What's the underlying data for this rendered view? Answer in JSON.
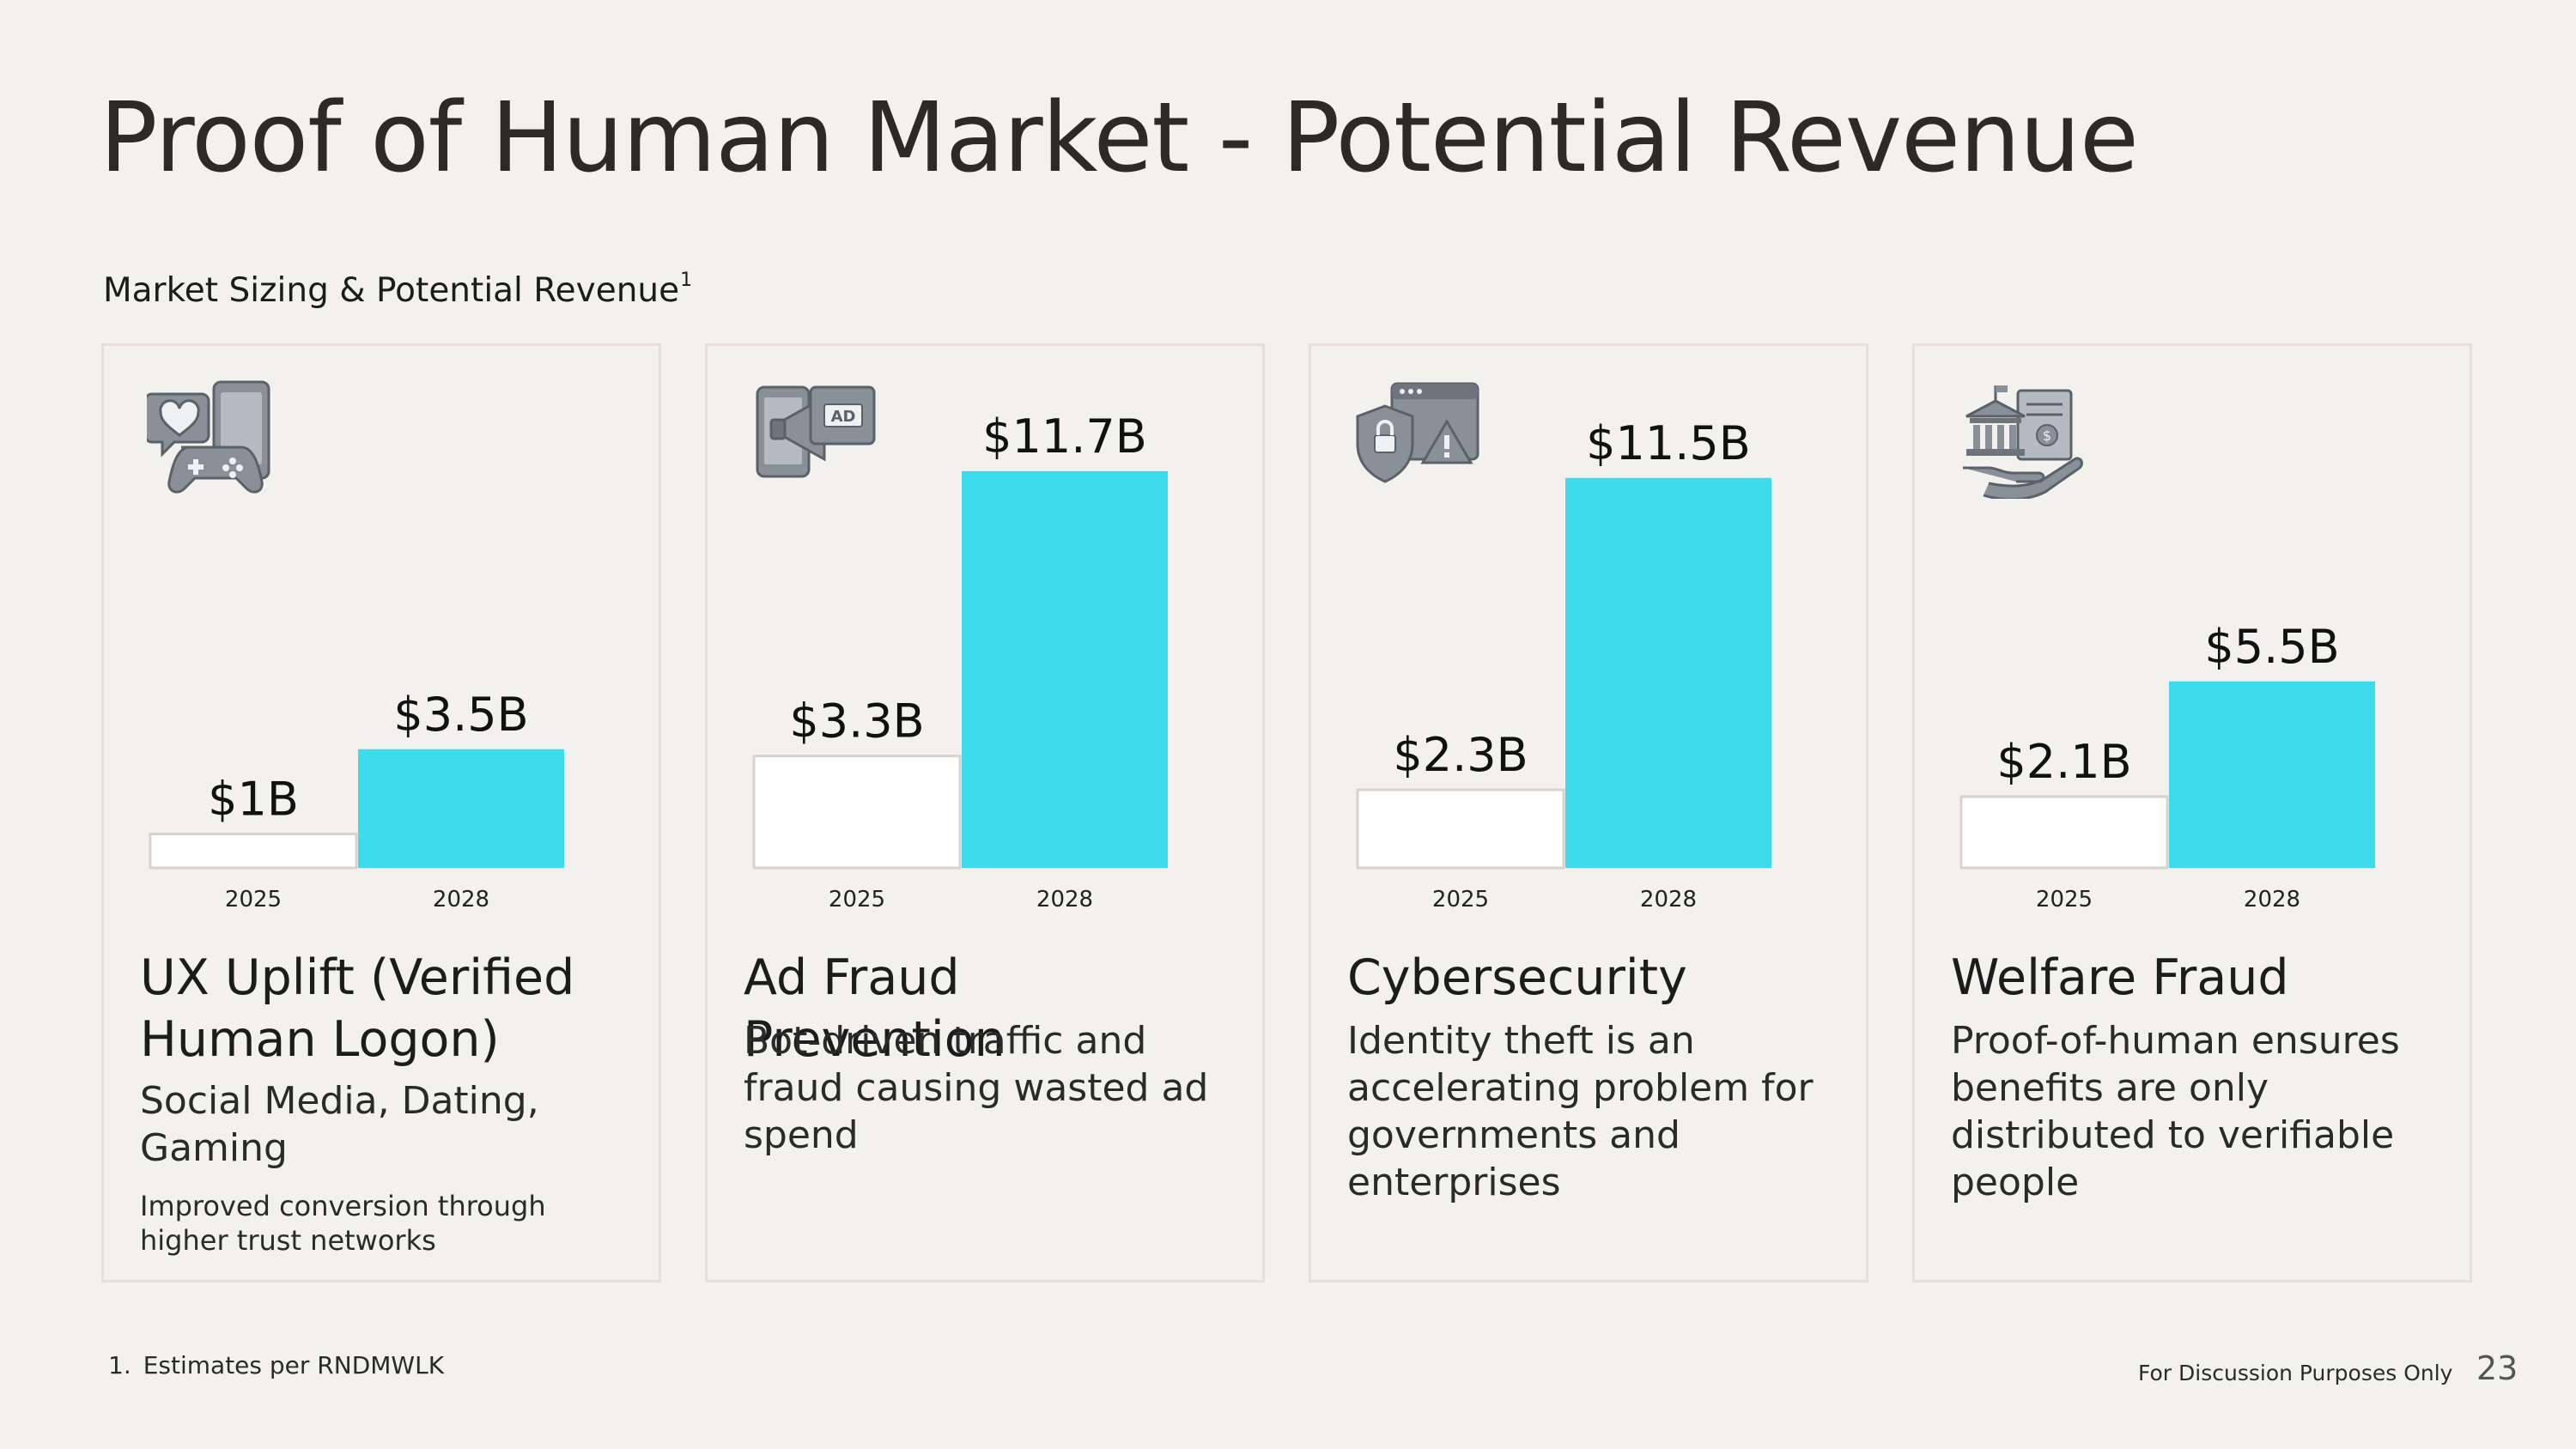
{
  "page": {
    "title": "Proof of Human Market - Potential Revenue",
    "subtitle": "Market Sizing & Potential Revenue",
    "subtitle_footnote_mark": "1",
    "footnote_number": "1.",
    "footnote_text": "Estimates per RNDMWLK",
    "disclaimer": "For Discussion Purposes Only",
    "page_number": "23"
  },
  "colors": {
    "bar_2025": "#ffffff",
    "bar_2028": "#3ddcec",
    "background": "#f2f1ee",
    "icon": "#8a9097"
  },
  "cards": [
    {
      "title": "UX Uplift (Verified Human Logon)",
      "subtitle": "Social Media, Dating, Gaming",
      "note": "Improved conversion through higher trust networks",
      "icon": "social-gaming-icon"
    },
    {
      "title": "Ad Fraud Prevention",
      "subtitle": "Bot-driven traffic and fraud causing wasted ad spend",
      "icon": "ad-megaphone-icon"
    },
    {
      "title": "Cybersecurity",
      "subtitle": "Identity theft is an accelerating problem for governments and enterprises",
      "icon": "security-shield-icon"
    },
    {
      "title": "Welfare Fraud",
      "subtitle": "Proof-of-human ensures benefits are only distributed to verifiable people",
      "icon": "government-benefits-icon"
    }
  ],
  "chart_data": [
    {
      "type": "bar",
      "categories": [
        "2025",
        "2028"
      ],
      "values": [
        1,
        3.5
      ],
      "value_labels": [
        "$1B",
        "$3.5B"
      ],
      "unit": "$B"
    },
    {
      "type": "bar",
      "categories": [
        "2025",
        "2028"
      ],
      "values": [
        3.3,
        11.7
      ],
      "value_labels": [
        "$3.3B",
        "$11.7B"
      ],
      "unit": "$B"
    },
    {
      "type": "bar",
      "categories": [
        "2025",
        "2028"
      ],
      "values": [
        2.3,
        11.5
      ],
      "value_labels": [
        "$2.3B",
        "$11.5B"
      ],
      "unit": "$B"
    },
    {
      "type": "bar",
      "categories": [
        "2025",
        "2028"
      ],
      "values": [
        2.1,
        5.5
      ],
      "value_labels": [
        "$2.1B",
        "$5.5B"
      ],
      "unit": "$B"
    }
  ]
}
